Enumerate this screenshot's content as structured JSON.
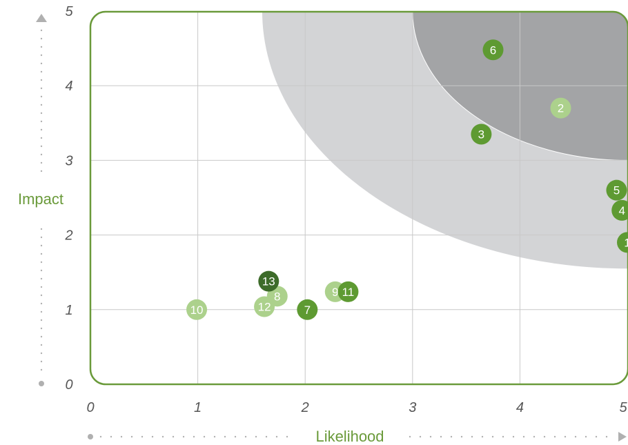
{
  "chart_data": {
    "type": "scatter",
    "title": "",
    "xlabel": "Likelihood",
    "ylabel": "Impact",
    "xlim": [
      0,
      5
    ],
    "ylim": [
      0,
      5
    ],
    "x_ticks": [
      "0",
      "1",
      "2",
      "3",
      "4",
      "5"
    ],
    "y_ticks": [
      "0",
      "1",
      "2",
      "3",
      "4",
      "5"
    ],
    "grid": true,
    "colors": {
      "frame": "#6a9a3a",
      "grid": "#c8c8c8",
      "zone_mid": "#d3d4d6",
      "zone_high": "#a3a4a6",
      "dot_dark": "#3d6b2a",
      "dot_mid": "#5e9a32",
      "dot_light": "#acd18c",
      "axis_arrow": "#b0b0b0"
    },
    "points": [
      {
        "label": "1",
        "x": 5.0,
        "y": 1.9,
        "shade": "mid"
      },
      {
        "label": "2",
        "x": 4.38,
        "y": 3.7,
        "shade": "light"
      },
      {
        "label": "3",
        "x": 3.64,
        "y": 3.35,
        "shade": "mid"
      },
      {
        "label": "4",
        "x": 4.95,
        "y": 2.33,
        "shade": "mid"
      },
      {
        "label": "5",
        "x": 4.9,
        "y": 2.6,
        "shade": "mid"
      },
      {
        "label": "6",
        "x": 3.75,
        "y": 4.48,
        "shade": "mid"
      },
      {
        "label": "7",
        "x": 2.02,
        "y": 1.0,
        "shade": "mid"
      },
      {
        "label": "8",
        "x": 1.74,
        "y": 1.18,
        "shade": "light"
      },
      {
        "label": "9",
        "x": 2.28,
        "y": 1.24,
        "shade": "light"
      },
      {
        "label": "10",
        "x": 0.99,
        "y": 1.0,
        "shade": "light"
      },
      {
        "label": "11",
        "x": 2.4,
        "y": 1.24,
        "shade": "mid"
      },
      {
        "label": "12",
        "x": 1.62,
        "y": 1.04,
        "shade": "light"
      },
      {
        "label": "13",
        "x": 1.66,
        "y": 1.38,
        "shade": "dark"
      }
    ]
  }
}
